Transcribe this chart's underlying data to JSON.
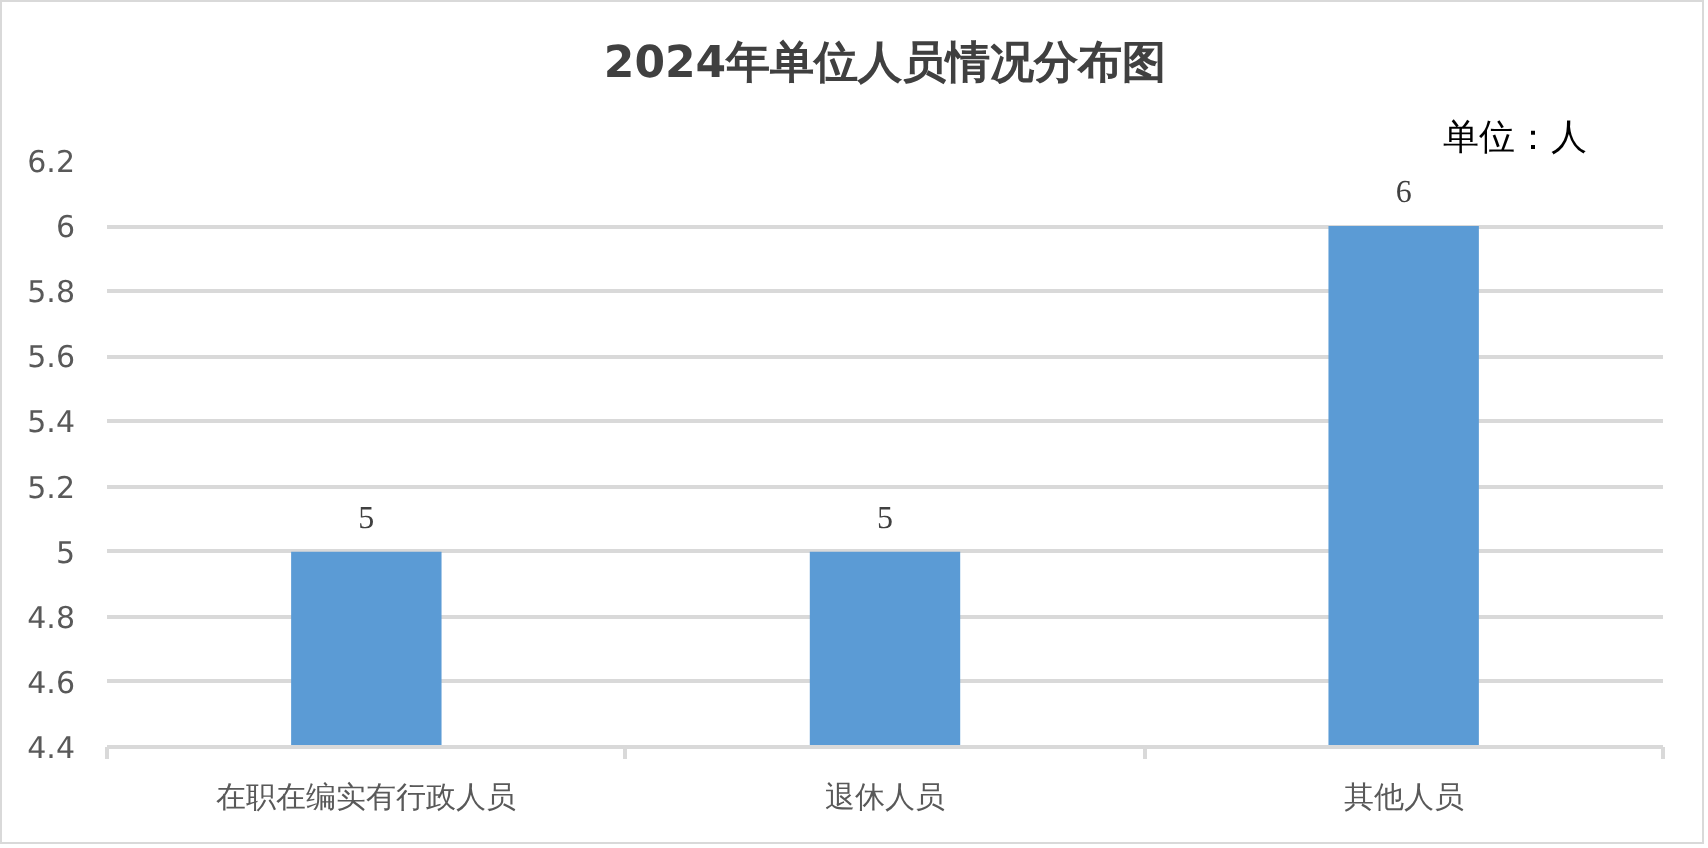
{
  "chart_data": {
    "type": "bar",
    "title": "2024年单位人员情况分布图",
    "categories": [
      "在职在编实有行政人员",
      "退休人员",
      "其他人员"
    ],
    "values": [
      5,
      5,
      6
    ],
    "color": "#5b9bd5",
    "ylim": [
      4.4,
      6.2
    ],
    "yticks": [
      4.4,
      4.6,
      4.8,
      5,
      5.2,
      5.4,
      5.6,
      5.8,
      6,
      6.2
    ],
    "grid": "y",
    "data_labels": true,
    "annotations": [
      "单位：人"
    ]
  }
}
